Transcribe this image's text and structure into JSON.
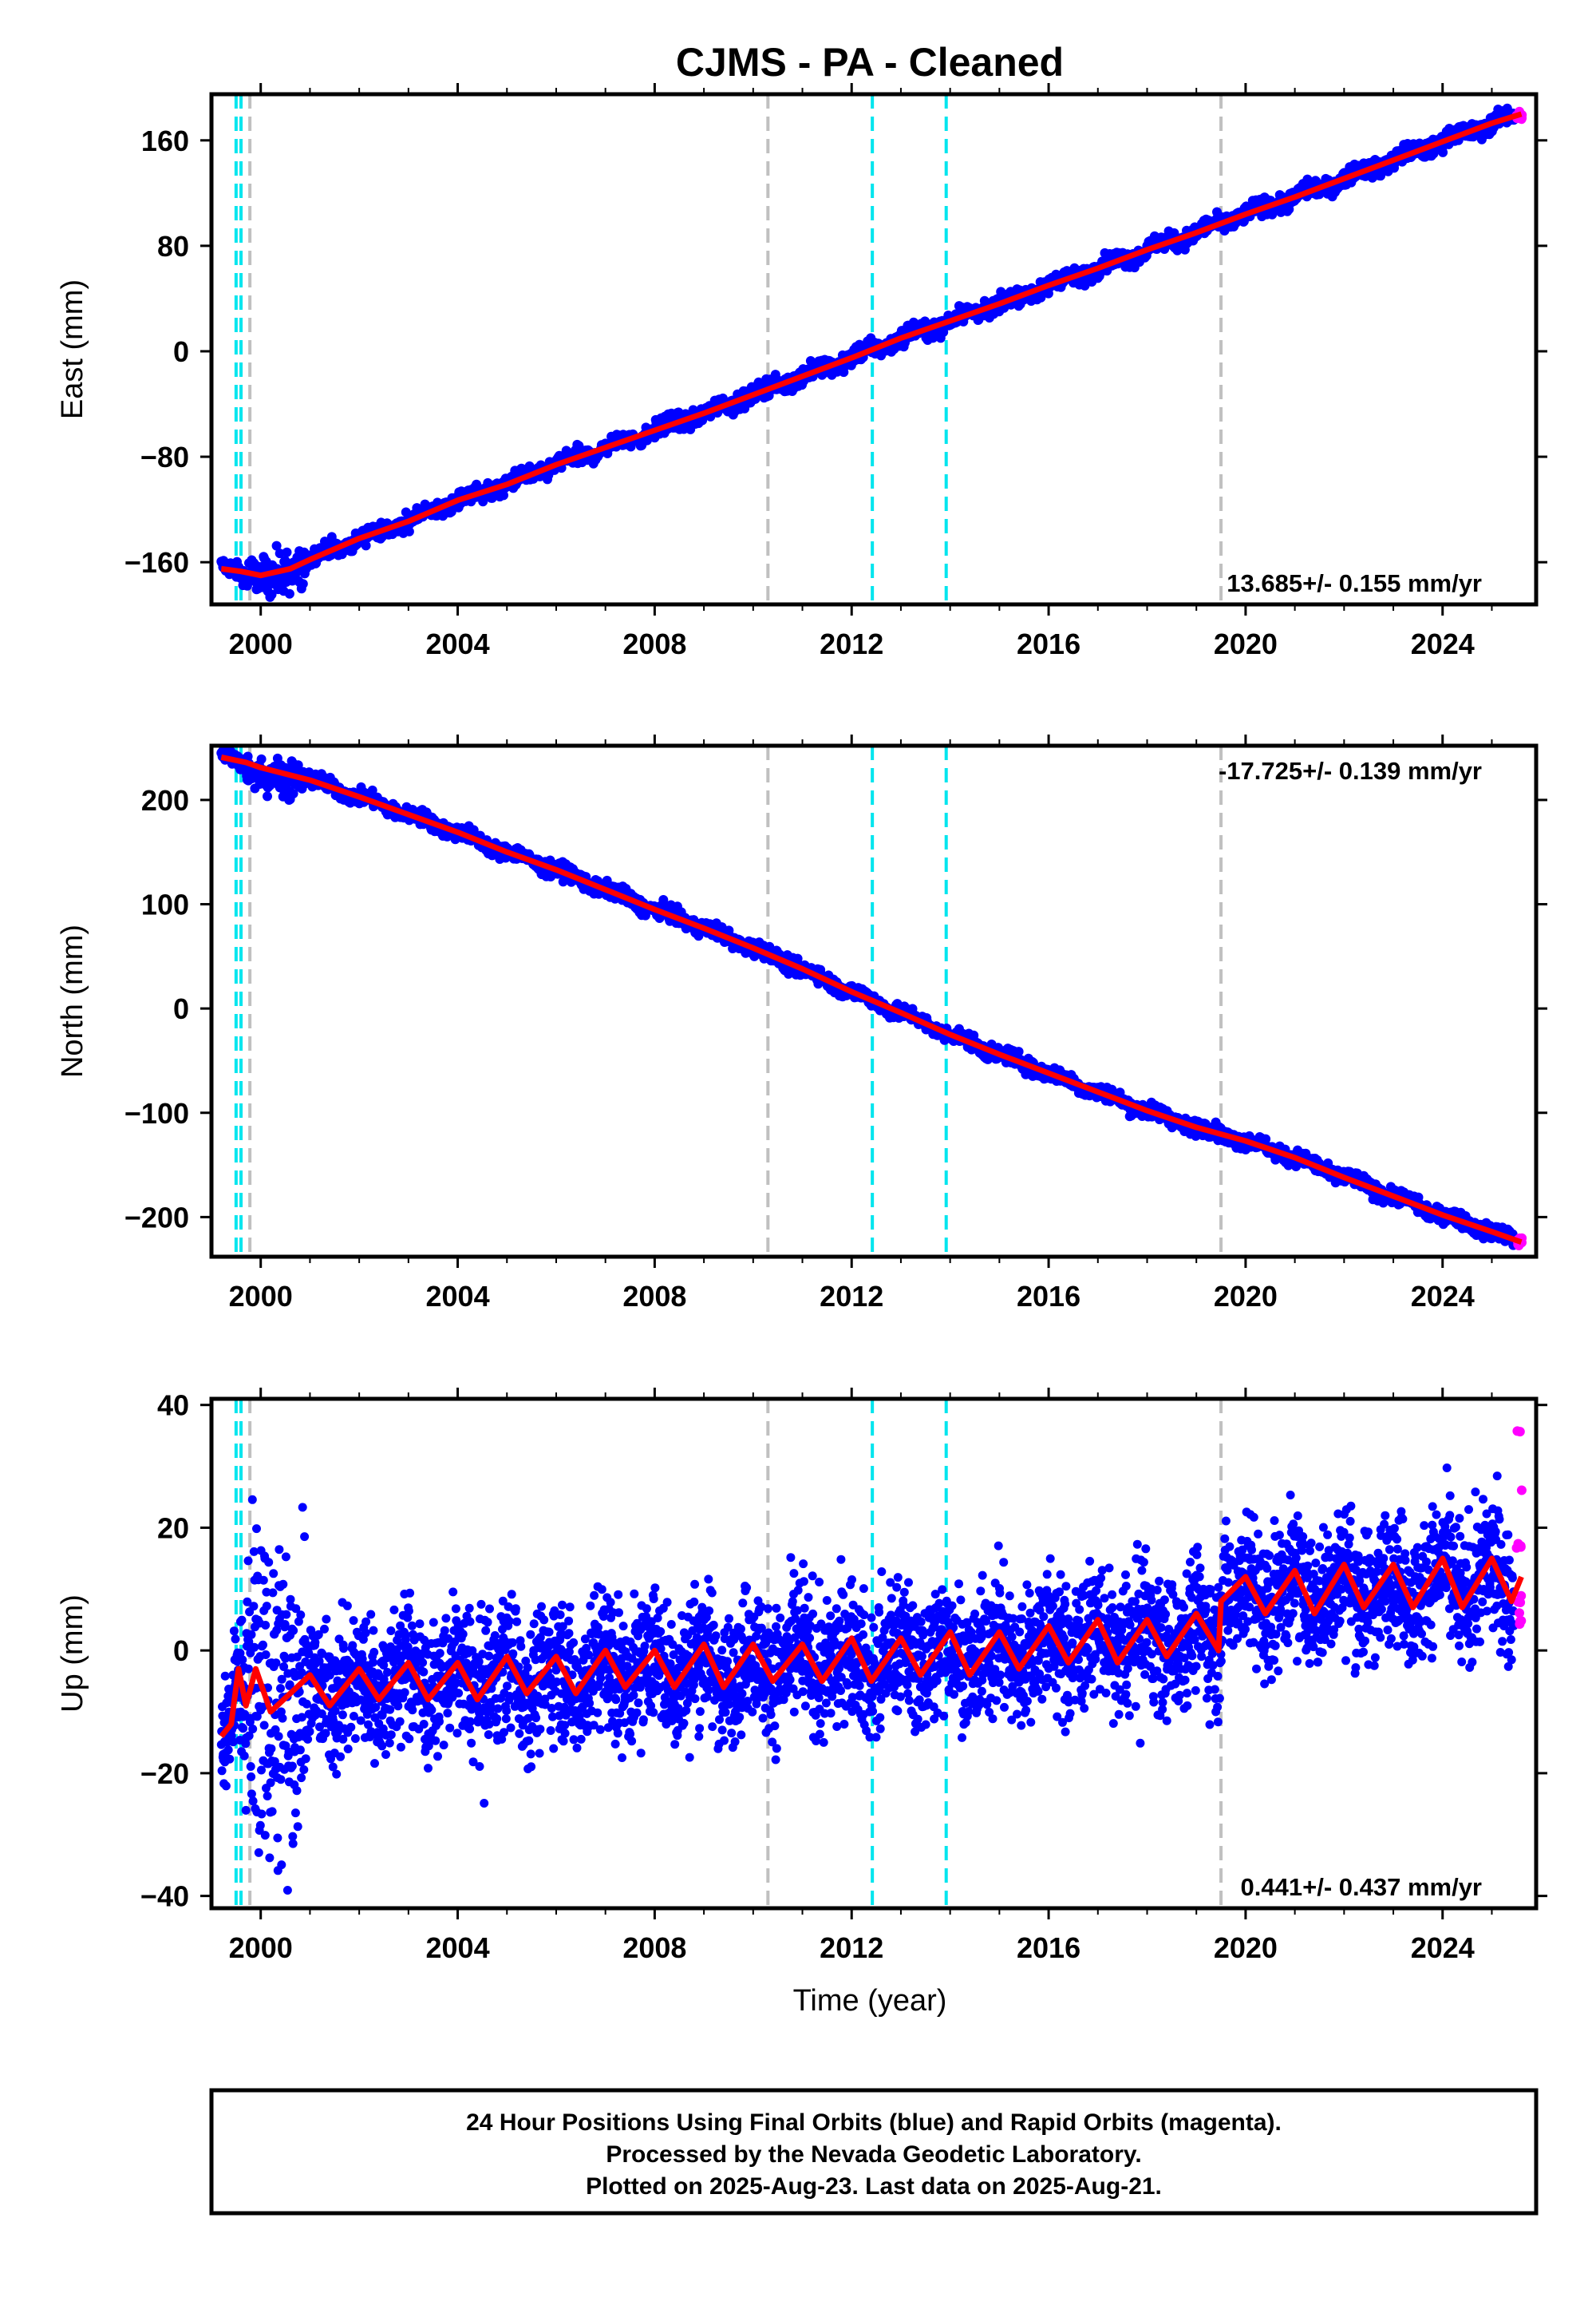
{
  "title": "CJMS  - PA - Cleaned",
  "xlabel": "Time (year)",
  "footer": {
    "line1": "24 Hour Positions Using Final Orbits (blue) and Rapid Orbits (magenta).",
    "line2": "Processed by the Nevada Geodetic Laboratory.",
    "line3": "Plotted on 2025-Aug-23. Last data on 2025-Aug-21."
  },
  "colors": {
    "final": "#0000ff",
    "rapid": "#ff00ff",
    "model": "#ff0000",
    "antenna_change": "#00e5ee",
    "equipment_change": "#c0c0c0"
  },
  "chart_data": [
    {
      "type": "scatter",
      "ylabel": "East (mm)",
      "rate": "13.685+/- 0.155 mm/yr",
      "xlim": [
        1999.0,
        2025.9
      ],
      "ylim": [
        -192,
        195
      ],
      "xticks": [
        2000,
        2004,
        2008,
        2012,
        2016,
        2020,
        2024
      ],
      "yticks": [
        -160,
        -80,
        0,
        80,
        160
      ],
      "series": [
        {
          "key": "trend",
          "values": [
            [
              1999.2,
              -165
            ],
            [
              1999.6,
              -167
            ],
            [
              2000.0,
              -170
            ],
            [
              2000.6,
              -165
            ],
            [
              2001.0,
              -158
            ],
            [
              2002.0,
              -142
            ],
            [
              2003.0,
              -129
            ],
            [
              2004.0,
              -113
            ],
            [
              2005.0,
              -101
            ],
            [
              2006.0,
              -86
            ],
            [
              2007.0,
              -73
            ],
            [
              2008.0,
              -60
            ],
            [
              2009.0,
              -47
            ],
            [
              2010.0,
              -33
            ],
            [
              2011.0,
              -19
            ],
            [
              2012.0,
              -5
            ],
            [
              2013.0,
              10
            ],
            [
              2014.0,
              23
            ],
            [
              2015.0,
              36
            ],
            [
              2016.0,
              50
            ],
            [
              2017.0,
              63
            ],
            [
              2018.0,
              77
            ],
            [
              2019.0,
              90
            ],
            [
              2020.0,
              104
            ],
            [
              2021.0,
              117
            ],
            [
              2022.0,
              131
            ],
            [
              2023.0,
              145
            ],
            [
              2024.0,
              159
            ],
            [
              2025.0,
              173
            ],
            [
              2025.6,
              180
            ]
          ]
        }
      ],
      "vlines": [
        {
          "x": 1999.5,
          "kind": "antenna_change"
        },
        {
          "x": 1999.6,
          "kind": "antenna_change"
        },
        {
          "x": 1999.78,
          "kind": "equipment_change"
        },
        {
          "x": 2010.3,
          "kind": "equipment_change"
        },
        {
          "x": 2012.42,
          "kind": "antenna_change"
        },
        {
          "x": 2013.92,
          "kind": "antenna_change"
        },
        {
          "x": 2019.5,
          "kind": "equipment_change"
        }
      ]
    },
    {
      "type": "scatter",
      "ylabel": "North (mm)",
      "rate": "-17.725+/- 0.139 mm/yr",
      "xlim": [
        1999.0,
        2025.9
      ],
      "ylim": [
        -238,
        252
      ],
      "xticks": [
        2000,
        2004,
        2008,
        2012,
        2016,
        2020,
        2024
      ],
      "yticks": [
        -200,
        -100,
        0,
        100,
        200
      ],
      "series": [
        {
          "key": "trend",
          "values": [
            [
              1999.2,
              241
            ],
            [
              1999.7,
              236
            ],
            [
              2000.0,
              231
            ],
            [
              2001.0,
              219
            ],
            [
              2002.0,
              203
            ],
            [
              2003.0,
              186
            ],
            [
              2004.0,
              169
            ],
            [
              2005.0,
              150
            ],
            [
              2006.0,
              133
            ],
            [
              2007.0,
              114
            ],
            [
              2008.0,
              95
            ],
            [
              2009.0,
              77
            ],
            [
              2010.0,
              58
            ],
            [
              2011.0,
              38
            ],
            [
              2012.0,
              16
            ],
            [
              2013.0,
              -4
            ],
            [
              2014.0,
              -25
            ],
            [
              2015.0,
              -44
            ],
            [
              2016.0,
              -62
            ],
            [
              2017.0,
              -80
            ],
            [
              2018.0,
              -98
            ],
            [
              2019.0,
              -114
            ],
            [
              2020.0,
              -127
            ],
            [
              2021.0,
              -143
            ],
            [
              2022.0,
              -162
            ],
            [
              2023.0,
              -180
            ],
            [
              2024.0,
              -198
            ],
            [
              2025.0,
              -214
            ],
            [
              2025.6,
              -224
            ]
          ]
        }
      ],
      "vlines": [
        {
          "x": 1999.5,
          "kind": "antenna_change"
        },
        {
          "x": 1999.6,
          "kind": "antenna_change"
        },
        {
          "x": 1999.78,
          "kind": "equipment_change"
        },
        {
          "x": 2010.3,
          "kind": "equipment_change"
        },
        {
          "x": 2012.42,
          "kind": "antenna_change"
        },
        {
          "x": 2013.92,
          "kind": "antenna_change"
        },
        {
          "x": 2019.5,
          "kind": "equipment_change"
        }
      ]
    },
    {
      "type": "scatter",
      "ylabel": "Up (mm)",
      "rate": "0.441+/- 0.437 mm/yr",
      "xlim": [
        1999.0,
        2025.9
      ],
      "ylim": [
        -42,
        41
      ],
      "xticks": [
        2000,
        2004,
        2008,
        2012,
        2016,
        2020,
        2024
      ],
      "yticks": [
        -40,
        -20,
        0,
        20,
        40
      ],
      "series": [
        {
          "key": "trend",
          "values": [
            [
              1999.2,
              -14
            ],
            [
              1999.4,
              -12
            ],
            [
              1999.55,
              -3
            ],
            [
              1999.7,
              -9
            ],
            [
              1999.9,
              -3
            ],
            [
              2000.2,
              -10
            ],
            [
              2001.0,
              -4
            ],
            [
              2001.4,
              -9
            ],
            [
              2002.0,
              -3
            ],
            [
              2002.4,
              -8
            ],
            [
              2003.0,
              -2
            ],
            [
              2003.4,
              -8
            ],
            [
              2004.0,
              -2
            ],
            [
              2004.4,
              -8
            ],
            [
              2005.0,
              -1
            ],
            [
              2005.4,
              -7
            ],
            [
              2006.0,
              -1
            ],
            [
              2006.4,
              -7
            ],
            [
              2007.0,
              0
            ],
            [
              2007.4,
              -6
            ],
            [
              2008.0,
              0
            ],
            [
              2008.4,
              -6
            ],
            [
              2009.0,
              1
            ],
            [
              2009.4,
              -6
            ],
            [
              2010.0,
              1
            ],
            [
              2010.4,
              -5
            ],
            [
              2011.0,
              1
            ],
            [
              2011.4,
              -5
            ],
            [
              2012.0,
              2
            ],
            [
              2012.4,
              -5
            ],
            [
              2013.0,
              2
            ],
            [
              2013.4,
              -4
            ],
            [
              2014.0,
              3
            ],
            [
              2014.4,
              -4
            ],
            [
              2015.0,
              3
            ],
            [
              2015.4,
              -3
            ],
            [
              2016.0,
              4
            ],
            [
              2016.4,
              -2
            ],
            [
              2017.0,
              5
            ],
            [
              2017.4,
              -2
            ],
            [
              2018.0,
              5
            ],
            [
              2018.4,
              -1
            ],
            [
              2019.0,
              6
            ],
            [
              2019.45,
              0
            ],
            [
              2019.5,
              8
            ],
            [
              2020.0,
              12
            ],
            [
              2020.4,
              6
            ],
            [
              2021.0,
              13
            ],
            [
              2021.4,
              6
            ],
            [
              2022.0,
              14
            ],
            [
              2022.4,
              7
            ],
            [
              2023.0,
              14
            ],
            [
              2023.4,
              7
            ],
            [
              2024.0,
              15
            ],
            [
              2024.4,
              7
            ],
            [
              2025.0,
              15
            ],
            [
              2025.4,
              8
            ],
            [
              2025.6,
              12
            ]
          ]
        }
      ],
      "vlines": [
        {
          "x": 1999.5,
          "kind": "antenna_change"
        },
        {
          "x": 1999.6,
          "kind": "antenna_change"
        },
        {
          "x": 1999.78,
          "kind": "equipment_change"
        },
        {
          "x": 2010.3,
          "kind": "equipment_change"
        },
        {
          "x": 2012.42,
          "kind": "antenna_change"
        },
        {
          "x": 2013.92,
          "kind": "antenna_change"
        },
        {
          "x": 2019.5,
          "kind": "equipment_change"
        }
      ]
    }
  ]
}
